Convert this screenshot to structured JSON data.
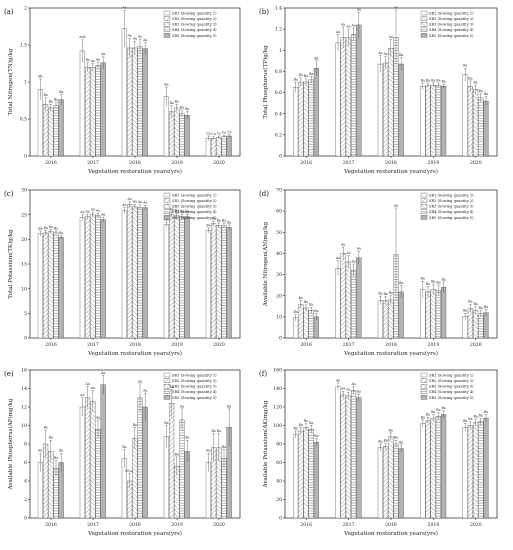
{
  "legend": [
    "SR1 (Sowing quantity 1)",
    "SR2 (Sowing quantity 2)",
    "SR3 (Sowing quantity 3)",
    "SR4 (Sowing quantity 4)",
    "SR5 (Sowing quantity 5)"
  ],
  "colors": [
    "#ffffff",
    "#ffffff",
    "#ffffff",
    "#ffffff",
    "#b3b3b3"
  ],
  "chart_data": [
    {
      "type": "bar",
      "panel_label": "(a)",
      "ylabel": "Total Nitrogen(TN)g/kg",
      "xlabel": "Vegetation restoration years(yrs)",
      "categories": [
        "2016",
        "2017",
        "2018",
        "2019",
        "2020"
      ],
      "ylim": [
        0,
        2.0
      ],
      "yticks": [
        0.0,
        0.5,
        1.0,
        1.5,
        2.0
      ],
      "series": [
        {
          "name": "SR1",
          "values": [
            0.9,
            1.42,
            1.72,
            0.8,
            0.24
          ],
          "err": [
            0.14,
            0.15,
            0.25,
            0.13,
            0.03
          ],
          "labels": [
            "Bb",
            "Aab",
            "Aa",
            "Ba",
            "Ca"
          ]
        },
        {
          "name": "SR2",
          "values": [
            0.7,
            1.2,
            1.46,
            0.6,
            0.24
          ],
          "err": [
            0.09,
            0.06,
            0.13,
            0.08,
            0.02
          ],
          "labels": [
            "Ba",
            "Ba",
            "Aa",
            "Ba",
            "Ca"
          ]
        },
        {
          "name": "SR3",
          "values": [
            0.65,
            1.2,
            1.46,
            0.65,
            0.25
          ],
          "err": [
            0.05,
            0.05,
            0.09,
            0.05,
            0.02
          ],
          "labels": [
            "Ba",
            "Aa",
            "Aa",
            "Ba",
            "Ca"
          ]
        },
        {
          "name": "SR4",
          "values": [
            0.68,
            1.22,
            1.48,
            0.57,
            0.26
          ],
          "err": [
            0.05,
            0.05,
            0.1,
            0.05,
            0.02
          ],
          "labels": [
            "Ba",
            "Aa",
            "Aa",
            "Ba",
            "Ca"
          ]
        },
        {
          "name": "SR5",
          "values": [
            0.76,
            1.26,
            1.45,
            0.55,
            0.27
          ],
          "err": [
            0.07,
            0.08,
            0.08,
            0.05,
            0.02
          ],
          "labels": [
            "Ba",
            "Aa",
            "Aa",
            "Ba",
            "Ca"
          ]
        }
      ]
    },
    {
      "type": "bar",
      "panel_label": "(b)",
      "ylabel": "Total Phosphorus(TP)g/kg",
      "xlabel": "Vegetation restoration years(yrs)",
      "categories": [
        "2016",
        "2017",
        "2018",
        "2019",
        "2020"
      ],
      "ylim": [
        0,
        1.4
      ],
      "yticks": [
        0.0,
        0.2,
        0.4,
        0.6,
        0.8,
        1.0,
        1.2,
        1.4
      ],
      "series": [
        {
          "name": "SR1",
          "values": [
            0.65,
            1.07,
            0.87,
            0.66,
            0.77
          ],
          "err": [
            0.05,
            0.08,
            0.08,
            0.03,
            0.06
          ],
          "labels": [
            "Ba",
            "Aa",
            "Aa",
            "Ba",
            "Ba"
          ]
        },
        {
          "name": "SR2",
          "values": [
            0.7,
            1.12,
            0.88,
            0.67,
            0.66
          ],
          "err": [
            0.04,
            0.1,
            0.06,
            0.02,
            0.05
          ],
          "labels": [
            "Ba",
            "Aa",
            "Aa",
            "Ba",
            "Ba"
          ]
        },
        {
          "name": "SR3",
          "values": [
            0.7,
            1.12,
            1.02,
            0.67,
            0.63
          ],
          "err": [
            0.03,
            0.08,
            0.08,
            0.02,
            0.04
          ],
          "labels": [
            "Ba",
            "Aa",
            "Aa",
            "Ba",
            "Ba"
          ]
        },
        {
          "name": "SR4",
          "values": [
            0.72,
            1.15,
            1.12,
            0.67,
            0.55
          ],
          "err": [
            0.03,
            0.06,
            0.26,
            0.02,
            0.04
          ],
          "labels": [
            "Ba",
            "Aa",
            "Aa",
            "Ba",
            "Ba"
          ]
        },
        {
          "name": "SR5",
          "values": [
            0.83,
            1.24,
            0.87,
            0.66,
            0.52
          ],
          "err": [
            0.07,
            0.12,
            0.06,
            0.02,
            0.04
          ],
          "labels": [
            "Ba",
            "Aa",
            "Ba",
            "Ba",
            "Ba"
          ]
        }
      ]
    },
    {
      "type": "bar",
      "panel_label": "(c)",
      "ylabel": "Total Potassium(TK)g/kg",
      "xlabel": "Vegetation restoration years(yrs)",
      "categories": [
        "2016",
        "2017",
        "2018",
        "2019",
        "2020"
      ],
      "ylim": [
        0,
        30
      ],
      "yticks": [
        0,
        5,
        10,
        15,
        20,
        25,
        30
      ],
      "series": [
        {
          "name": "SR1",
          "values": [
            21.2,
            24.4,
            25.8,
            23.0,
            21.8
          ],
          "err": [
            0.5,
            0.6,
            0.6,
            0.5,
            0.5
          ],
          "labels": [
            "Ba",
            "Aa",
            "Aa",
            "Ba",
            "Ba"
          ]
        },
        {
          "name": "SR2",
          "values": [
            21.3,
            24.6,
            27.0,
            25.0,
            23.2
          ],
          "err": [
            0.5,
            0.5,
            0.6,
            0.5,
            0.5
          ],
          "labels": [
            "Ba",
            "Aa",
            "Aa",
            "Ba",
            "Ba"
          ]
        },
        {
          "name": "SR3",
          "values": [
            21.6,
            25.0,
            26.6,
            24.8,
            22.8
          ],
          "err": [
            0.4,
            0.5,
            0.5,
            0.5,
            0.5
          ],
          "labels": [
            "Ba",
            "Aa",
            "Aa",
            "Ba",
            "Ba"
          ]
        },
        {
          "name": "SR4",
          "values": [
            21.3,
            24.8,
            26.5,
            24.6,
            22.8
          ],
          "err": [
            0.4,
            0.5,
            0.5,
            0.5,
            0.5
          ],
          "labels": [
            "Ba",
            "Aa",
            "Aa",
            "Ba",
            "Ba"
          ]
        },
        {
          "name": "SR5",
          "values": [
            20.4,
            24.0,
            26.4,
            24.6,
            22.4
          ],
          "err": [
            0.4,
            0.5,
            0.5,
            0.5,
            0.5
          ],
          "labels": [
            "Ba",
            "Aa",
            "Aa",
            "Ba",
            "Ba"
          ]
        }
      ]
    },
    {
      "type": "bar",
      "panel_label": "(d)",
      "ylabel": "Available Nitrogen(AN)mg/kg",
      "xlabel": "Vegetation restoration years(yrs)",
      "categories": [
        "2016",
        "2017",
        "2018",
        "2019",
        "2020"
      ],
      "ylim": [
        0,
        70
      ],
      "yticks": [
        0,
        10,
        20,
        30,
        40,
        50,
        60,
        70
      ],
      "series": [
        {
          "name": "SR1",
          "values": [
            9.5,
            33.0,
            17.8,
            22.8,
            10.2
          ],
          "err": [
            1.5,
            3.5,
            2.0,
            4.0,
            1.5
          ],
          "labels": [
            "Ba",
            "Aa",
            "Ba",
            "Ba",
            "Ba"
          ]
        },
        {
          "name": "SR2",
          "values": [
            15.8,
            40.0,
            17.6,
            21.8,
            14.0
          ],
          "err": [
            2.0,
            3.0,
            2.0,
            2.5,
            2.0
          ],
          "labels": [
            "Ba",
            "Aa",
            "Ba",
            "Ba",
            "Ba"
          ]
        },
        {
          "name": "SR3",
          "values": [
            14.2,
            36.0,
            18.0,
            23.0,
            13.0
          ],
          "err": [
            1.5,
            3.0,
            2.0,
            2.5,
            1.8
          ],
          "labels": [
            "Ba",
            "Aa",
            "Ba",
            "Ba",
            "Ba"
          ]
        },
        {
          "name": "SR4",
          "values": [
            13.0,
            32.0,
            39.5,
            22.6,
            11.5
          ],
          "err": [
            1.5,
            3.0,
            22.0,
            2.5,
            1.5
          ],
          "labels": [
            "Ba",
            "Aa",
            "Aa",
            "Ba",
            "Ba"
          ]
        },
        {
          "name": "SR5",
          "values": [
            10.0,
            38.0,
            21.8,
            24.0,
            12.0
          ],
          "err": [
            1.5,
            3.0,
            3.0,
            2.5,
            1.5
          ],
          "labels": [
            "Ba",
            "Aa",
            "Ba",
            "Ba",
            "Ba"
          ]
        }
      ]
    },
    {
      "type": "bar",
      "panel_label": "(e)",
      "ylabel": "Available Phosphorus(AP)mg/kg",
      "xlabel": "Vegetation restoration years(yrs)",
      "categories": [
        "2016",
        "2017",
        "2018",
        "2019",
        "2020"
      ],
      "ylim": [
        0,
        16
      ],
      "yticks": [
        0,
        2,
        4,
        6,
        8,
        10,
        12,
        14,
        16
      ],
      "series": [
        {
          "name": "SR1",
          "values": [
            6.0,
            12.0,
            6.4,
            8.8,
            6.0
          ],
          "err": [
            1.0,
            1.0,
            1.0,
            1.2,
            1.0
          ],
          "labels": [
            "Ba",
            "Aa",
            "Ba",
            "Ba",
            "Ba"
          ]
        },
        {
          "name": "SR2",
          "values": [
            8.0,
            13.0,
            4.0,
            12.4,
            7.6
          ],
          "err": [
            1.5,
            1.2,
            0.8,
            1.5,
            1.5
          ],
          "labels": [
            "Ba",
            "Aa",
            "BCab",
            "Aa",
            "Ba"
          ]
        },
        {
          "name": "SR3",
          "values": [
            7.2,
            12.6,
            8.6,
            5.6,
            7.6
          ],
          "err": [
            1.2,
            1.2,
            1.2,
            1.0,
            1.5
          ],
          "labels": [
            "Ba",
            "Aa",
            "Ba",
            "Ba",
            "Ba"
          ]
        },
        {
          "name": "SR4",
          "values": [
            5.4,
            9.6,
            13.0,
            10.6,
            6.4
          ],
          "err": [
            0.8,
            1.0,
            1.5,
            1.2,
            1.0
          ],
          "labels": [
            "Ba",
            "Aa",
            "Aa",
            "Aa",
            "Ba"
          ]
        },
        {
          "name": "SR5",
          "values": [
            6.0,
            14.4,
            12.0,
            7.2,
            9.8
          ],
          "err": [
            1.0,
            1.0,
            1.5,
            1.2,
            2.0
          ],
          "labels": [
            "Ba",
            "Aa",
            "Aa",
            "Ba",
            "Ba"
          ]
        }
      ]
    },
    {
      "type": "bar",
      "panel_label": "(f)",
      "ylabel": "Available Potassium(AK)mg/kg",
      "xlabel": "Vegetation restoration years(yrs)",
      "categories": [
        "2016",
        "2017",
        "2018",
        "2019",
        "2020"
      ],
      "ylim": [
        0,
        160
      ],
      "yticks": [
        0,
        20,
        40,
        60,
        80,
        100,
        120,
        140,
        160
      ],
      "series": [
        {
          "name": "SR1",
          "values": [
            90,
            142,
            76,
            102,
            98
          ],
          "err": [
            4,
            4,
            4,
            4,
            4
          ],
          "labels": [
            "Ba",
            "Aa",
            "Ba",
            "Ba",
            "Ba"
          ]
        },
        {
          "name": "SR2",
          "values": [
            94,
            133,
            77,
            105,
            100
          ],
          "err": [
            4,
            4,
            4,
            4,
            4
          ],
          "labels": [
            "Ba",
            "Aa",
            "Ba",
            "Ba",
            "Ba"
          ]
        },
        {
          "name": "SR3",
          "values": [
            98,
            132,
            88,
            108,
            103
          ],
          "err": [
            4,
            4,
            4,
            4,
            4
          ],
          "labels": [
            "Ba",
            "Aa",
            "Ba",
            "Ba",
            "Ba"
          ]
        },
        {
          "name": "SR4",
          "values": [
            96,
            138,
            80,
            110,
            104
          ],
          "err": [
            4,
            4,
            4,
            4,
            4
          ],
          "labels": [
            "Ba",
            "Aa",
            "Ba",
            "Ba",
            "Ba"
          ]
        },
        {
          "name": "SR5",
          "values": [
            82,
            130,
            75,
            112,
            108
          ],
          "err": [
            4,
            4,
            4,
            4,
            4
          ],
          "labels": [
            "Ba",
            "Aa",
            "Ba",
            "Ba",
            "Ba"
          ]
        }
      ]
    }
  ]
}
